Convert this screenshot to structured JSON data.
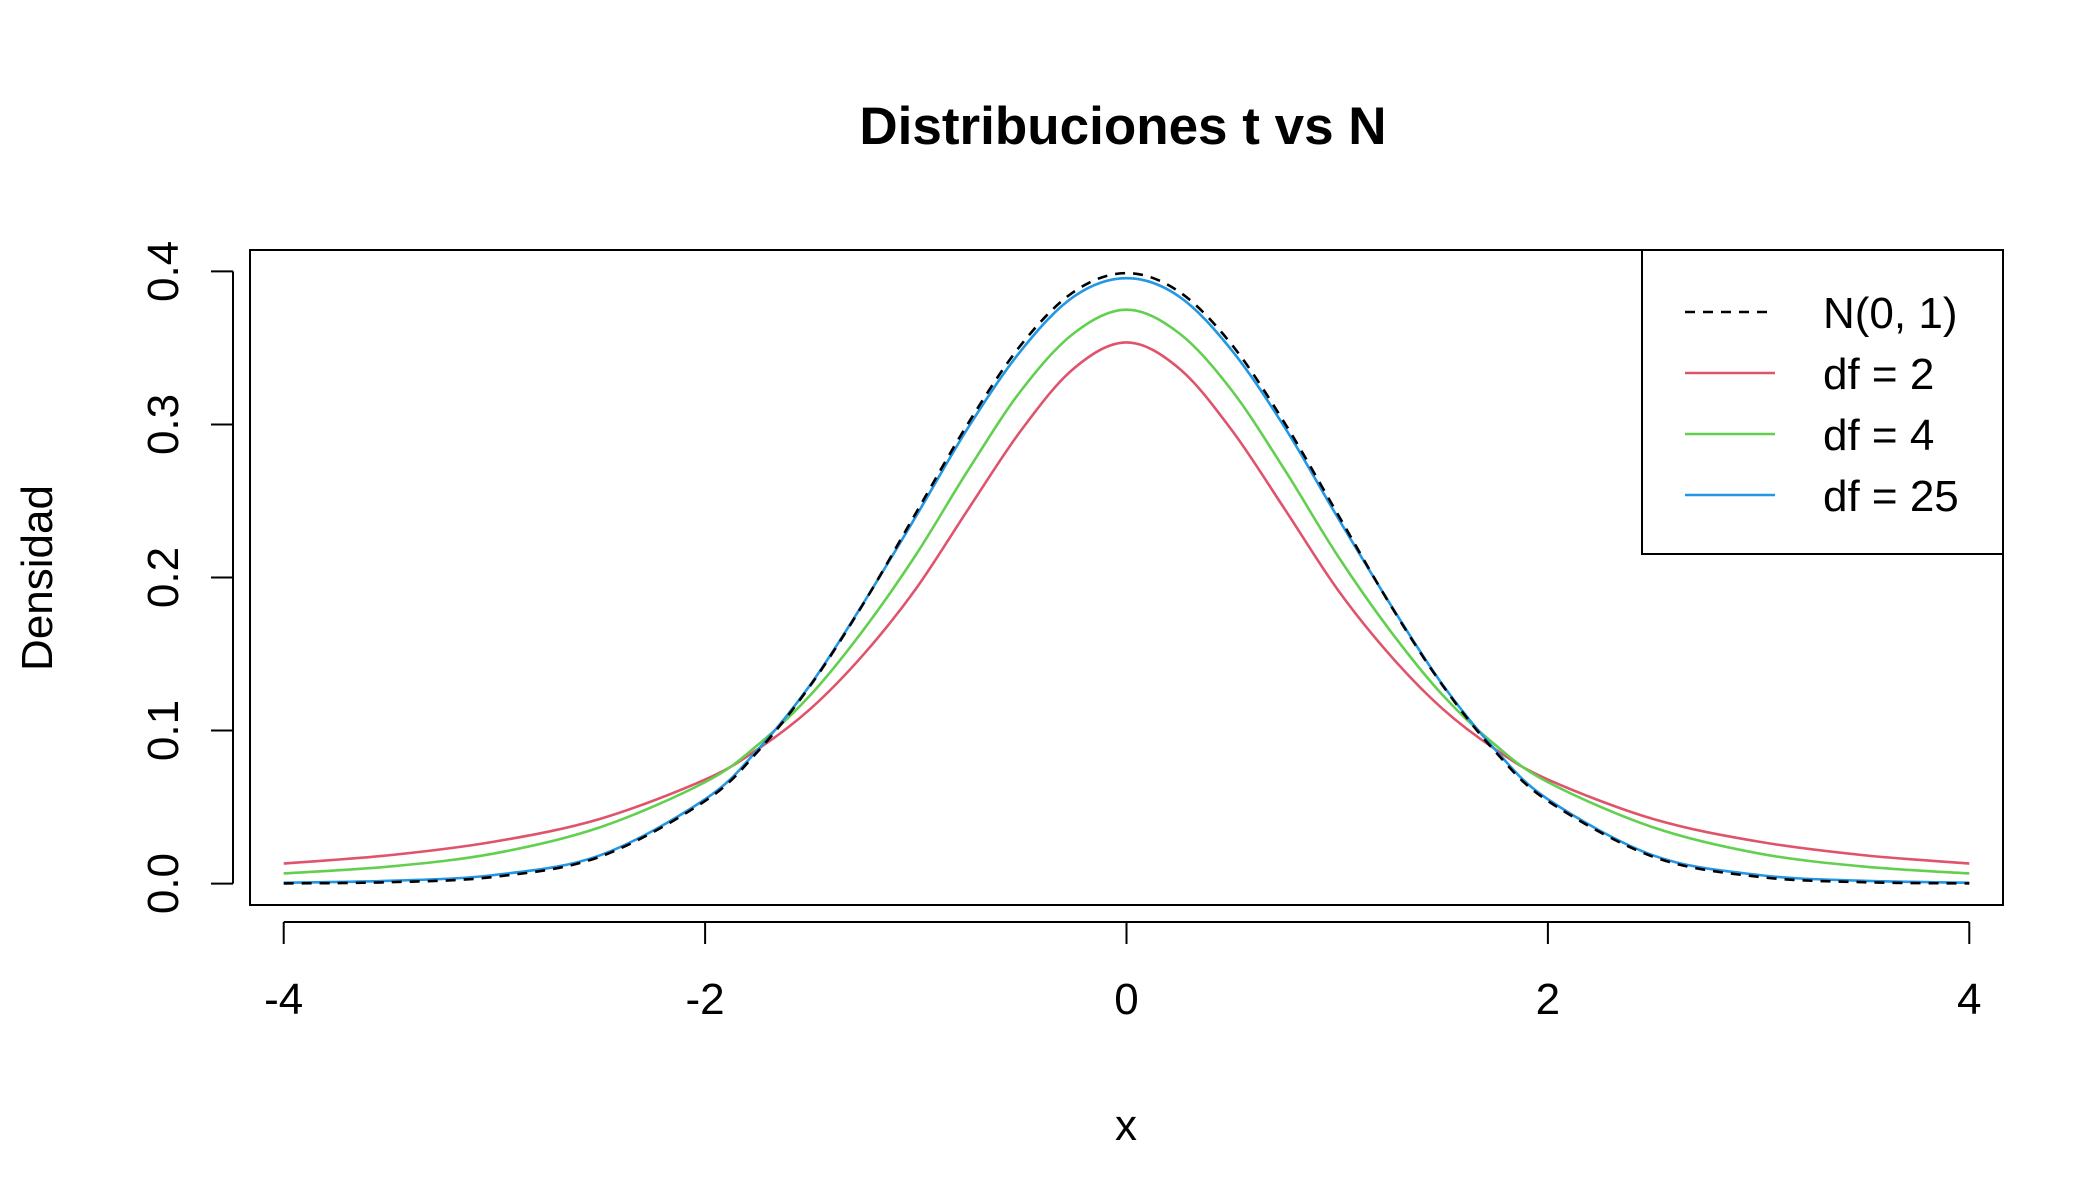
{
  "chart_data": {
    "type": "line",
    "title": "Distribuciones t vs N",
    "xlabel": "x",
    "ylabel": "Densidad",
    "xlim": [
      -4.16,
      4.16
    ],
    "ylim": [
      -0.014,
      0.414
    ],
    "x_ticks": [
      -4,
      -2,
      0,
      2,
      4
    ],
    "x_tick_labels": [
      "-4",
      "-2",
      "0",
      "2",
      "4"
    ],
    "y_ticks": [
      0.0,
      0.1,
      0.2,
      0.3,
      0.4
    ],
    "y_tick_labels": [
      "0.0",
      "0.1",
      "0.2",
      "0.3",
      "0.4"
    ],
    "grid": false,
    "legend_position": "top-right",
    "x": [
      -4,
      -3.5,
      -3,
      -2.5,
      -2,
      -1.75,
      -1.5,
      -1.25,
      -1,
      -0.75,
      -0.5,
      -0.25,
      0,
      0.25,
      0.5,
      0.75,
      1,
      1.25,
      1.5,
      1.75,
      2,
      2.5,
      3,
      3.5,
      4
    ],
    "series": [
      {
        "name": "N(0, 1)",
        "color": "#000000",
        "dash": true,
        "values": [
          0.0001,
          0.0009,
          0.0044,
          0.0175,
          0.054,
          0.0863,
          0.1295,
          0.1826,
          0.242,
          0.3011,
          0.3521,
          0.3867,
          0.3989,
          0.3867,
          0.3521,
          0.3011,
          0.242,
          0.1826,
          0.1295,
          0.0863,
          0.054,
          0.0175,
          0.0044,
          0.0009,
          0.0001
        ]
      },
      {
        "name": "df = 2",
        "color": "#DF536B",
        "dash": false,
        "values": [
          0.0131,
          0.0185,
          0.0274,
          0.0422,
          0.068,
          0.0878,
          0.1142,
          0.1494,
          0.1925,
          0.2449,
          0.2962,
          0.3366,
          0.3536,
          0.3366,
          0.2962,
          0.2449,
          0.1925,
          0.1494,
          0.1142,
          0.0878,
          0.068,
          0.0422,
          0.0274,
          0.0185,
          0.0131
        ]
      },
      {
        "name": "df = 4",
        "color": "#61D04F",
        "dash": false,
        "values": [
          0.0066,
          0.0111,
          0.0197,
          0.0367,
          0.0663,
          0.0906,
          0.1232,
          0.1655,
          0.2147,
          0.2705,
          0.3222,
          0.3596,
          0.375,
          0.3596,
          0.3222,
          0.2705,
          0.2147,
          0.1655,
          0.1232,
          0.0906,
          0.0663,
          0.0367,
          0.0197,
          0.0111,
          0.0066
        ]
      },
      {
        "name": "df = 25",
        "color": "#2297E6",
        "dash": false,
        "values": [
          0.0006,
          0.0018,
          0.0056,
          0.0184,
          0.0551,
          0.0875,
          0.13,
          0.183,
          0.2398,
          0.2983,
          0.3484,
          0.3836,
          0.3956,
          0.3836,
          0.3484,
          0.2983,
          0.2398,
          0.183,
          0.13,
          0.0875,
          0.0551,
          0.0184,
          0.0056,
          0.0018,
          0.0006
        ]
      }
    ]
  }
}
